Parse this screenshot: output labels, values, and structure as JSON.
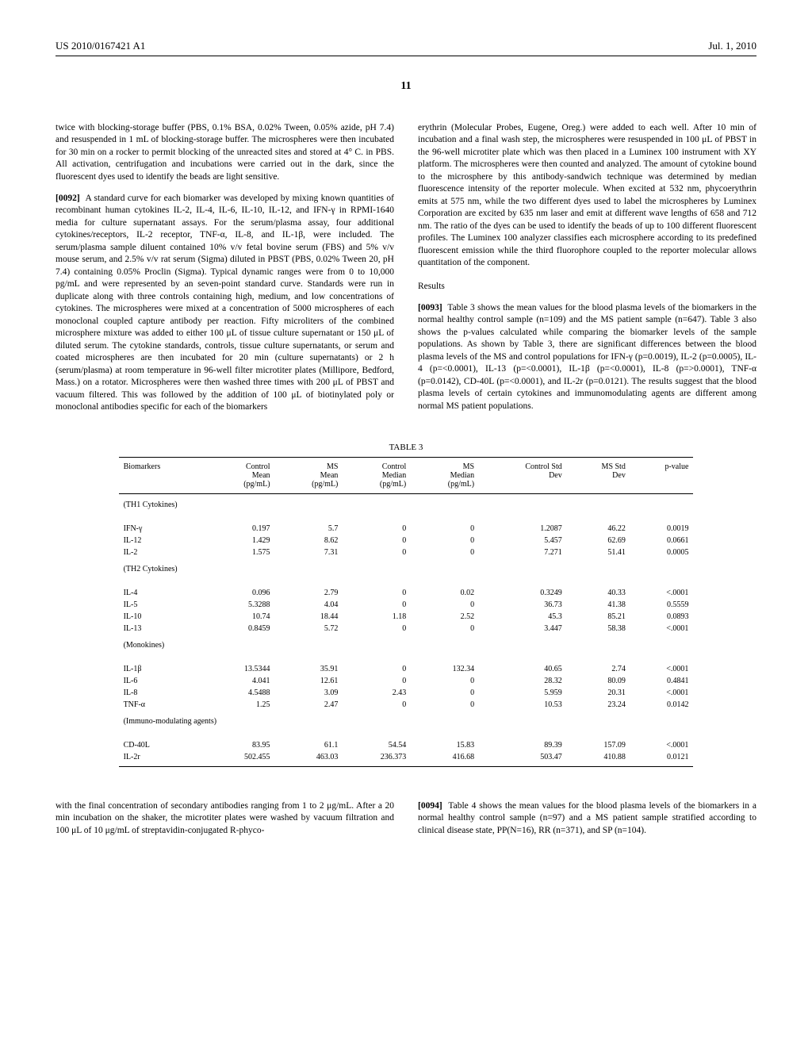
{
  "header": {
    "left": "US 2010/0167421 A1",
    "right": "Jul. 1, 2010"
  },
  "page_number": "11",
  "left_col": {
    "p1": "twice with blocking-storage buffer (PBS, 0.1% BSA, 0.02% Tween, 0.05% azide, pH 7.4) and resuspended in 1 mL of blocking-storage buffer. The microspheres were then incubated for 30 min on a rocker to permit blocking of the unreacted sites and stored at 4° C. in PBS. All activation, centrifugation and incubations were carried out in the dark, since the fluorescent dyes used to identify the beads are light sensitive.",
    "p2_label": "[0092]",
    "p2": "A standard curve for each biomarker was developed by mixing known quantities of recombinant human cytokines IL-2, IL-4, IL-6, IL-10, IL-12, and IFN-γ in RPMI-1640 media for culture supernatant assays. For the serum/plasma assay, four additional cytokines/receptors, IL-2 receptor, TNF-α, IL-8, and IL-1β, were included. The serum/plasma sample diluent contained 10% v/v fetal bovine serum (FBS) and 5% v/v mouse serum, and 2.5% v/v rat serum (Sigma) diluted in PBST (PBS, 0.02% Tween 20, pH 7.4) containing 0.05% Proclin (Sigma). Typical dynamic ranges were from 0 to 10,000 pg/mL and were represented by an seven-point standard curve. Standards were run in duplicate along with three controls containing high, medium, and low concentrations of cytokines. The microspheres were mixed at a concentration of 5000 microspheres of each monoclonal coupled capture antibody per reaction. Fifty microliters of the combined microsphere mixture was added to either 100 μL of tissue culture supernatant or 150 μL of diluted serum. The cytokine standards, controls, tissue culture supernatants, or serum and coated microspheres are then incubated for 20 min (culture supernatants) or 2 h (serum/plasma) at room temperature in 96-well filter microtiter plates (Millipore, Bedford, Mass.) on a rotator. Microspheres were then washed three times with 200 μL of PBST and vacuum filtered. This was followed by the addition of 100 μL of biotinylated poly or monoclonal antibodies specific for each of the biomarkers"
  },
  "right_col": {
    "p1": "erythrin (Molecular Probes, Eugene, Oreg.) were added to each well. After 10 min of incubation and a final wash step, the microspheres were resuspended in 100 μL of PBST in the 96-well microtiter plate which was then placed in a Luminex 100 instrument with XY platform. The microspheres were then counted and analyzed. The amount of cytokine bound to the microsphere by this antibody-sandwich technique was determined by median fluorescence intensity of the reporter molecule. When excited at 532 nm, phycoerythrin emits at 575 nm, while the two different dyes used to label the microspheres by Luminex Corporation are excited by 635 nm laser and emit at different wave lengths of 658 and 712 nm. The ratio of the dyes can be used to identify the beads of up to 100 different fluorescent profiles. The Luminex 100 analyzer classifies each microsphere according to its predefined fluorescent emission while the third fluorophore coupled to the reporter molecular allows quantitation of the component.",
    "results_heading": "Results",
    "p2_label": "[0093]",
    "p2": "Table 3 shows the mean values for the blood plasma levels of the biomarkers in the normal healthy control sample (n=109) and the MS patient sample (n=647). Table 3 also shows the p-values calculated while comparing the biomarker levels of the sample populations. As shown by Table 3, there are significant differences between the blood plasma levels of the MS and control populations for IFN-γ (p=0.0019), IL-2 (p=0.0005), IL-4 (p=<0.0001), IL-13 (p=<0.0001), IL-1β (p=<0.0001), IL-8 (p=>0.0001), TNF-α (p=0.0142), CD-40L (p=<0.0001), and IL-2r (p=0.0121). The results suggest that the blood plasma levels of certain cytokines and immunomodulating agents are different among normal MS patient populations."
  },
  "table": {
    "caption": "TABLE 3",
    "headers": [
      "Biomarkers",
      "Control Mean (pg/mL)",
      "MS Mean (pg/mL)",
      "Control Median (pg/mL)",
      "MS Median (pg/mL)",
      "Control Std Dev",
      "MS Std Dev",
      "p-value"
    ],
    "sections": [
      {
        "label": "(TH1 Cytokines)",
        "rows": [
          [
            "IFN-γ",
            "0.197",
            "5.7",
            "0",
            "0",
            "1.2087",
            "46.22",
            "0.0019"
          ],
          [
            "IL-12",
            "1.429",
            "8.62",
            "0",
            "0",
            "5.457",
            "62.69",
            "0.0661"
          ],
          [
            "IL-2",
            "1.575",
            "7.31",
            "0",
            "0",
            "7.271",
            "51.41",
            "0.0005"
          ]
        ]
      },
      {
        "label": "(TH2 Cytokines)",
        "rows": [
          [
            "IL-4",
            "0.096",
            "2.79",
            "0",
            "0.02",
            "0.3249",
            "40.33",
            "<.0001"
          ],
          [
            "IL-5",
            "5.3288",
            "4.04",
            "0",
            "0",
            "36.73",
            "41.38",
            "0.5559"
          ],
          [
            "IL-10",
            "10.74",
            "18.44",
            "1.18",
            "2.52",
            "45.3",
            "85.21",
            "0.0893"
          ],
          [
            "IL-13",
            "0.8459",
            "5.72",
            "0",
            "0",
            "3.447",
            "58.38",
            "<.0001"
          ]
        ]
      },
      {
        "label": "(Monokines)",
        "rows": [
          [
            "IL-1β",
            "13.5344",
            "35.91",
            "0",
            "132.34",
            "40.65",
            "2.74",
            "<.0001"
          ],
          [
            "IL-6",
            "4.041",
            "12.61",
            "0",
            "0",
            "28.32",
            "80.09",
            "0.4841"
          ],
          [
            "IL-8",
            "4.5488",
            "3.09",
            "2.43",
            "0",
            "5.959",
            "20.31",
            "<.0001"
          ],
          [
            "TNF-α",
            "1.25",
            "2.47",
            "0",
            "0",
            "10.53",
            "23.24",
            "0.0142"
          ]
        ]
      },
      {
        "label": "(Immuno-modulating agents)",
        "rows": [
          [
            "CD-40L",
            "83.95",
            "61.1",
            "54.54",
            "15.83",
            "89.39",
            "157.09",
            "<.0001"
          ],
          [
            "IL-2r",
            "502.455",
            "463.03",
            "236.373",
            "416.68",
            "503.47",
            "410.88",
            "0.0121"
          ]
        ]
      }
    ]
  },
  "lower_left": {
    "p1": "with the final concentration of secondary antibodies ranging from 1 to 2 μg/mL. After a 20 min incubation on the shaker, the microtiter plates were washed by vacuum filtration and 100 μL of 10 μg/mL of streptavidin-conjugated R-phyco-"
  },
  "lower_right": {
    "p1_label": "[0094]",
    "p1": "Table 4 shows the mean values for the blood plasma levels of the biomarkers in a normal healthy control sample (n=97) and a MS patient sample stratified according to clinical disease state, PP(N=16), RR (n=371), and SP (n=104)."
  }
}
